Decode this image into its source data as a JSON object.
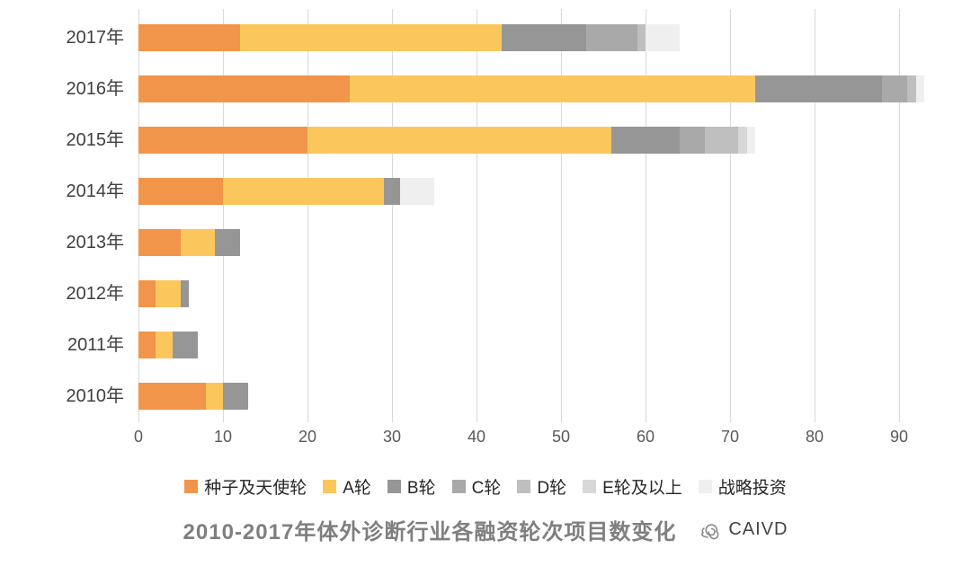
{
  "title": "2010-2017年体外诊断行业各融资轮次项目数变化",
  "logo_text": "CAIVD",
  "chart_data": {
    "type": "bar",
    "variant": "horizontal-stacked",
    "categories": [
      "2017年",
      "2016年",
      "2015年",
      "2014年",
      "2013年",
      "2012年",
      "2011年",
      "2010年"
    ],
    "series": [
      {
        "name": "种子及天使轮",
        "color": "#f0954a",
        "values": [
          12,
          25,
          20,
          10,
          5,
          2,
          2,
          8
        ]
      },
      {
        "name": "A轮",
        "color": "#fbc75c",
        "values": [
          31,
          48,
          36,
          19,
          4,
          3,
          2,
          2
        ]
      },
      {
        "name": "B轮",
        "color": "#969696",
        "values": [
          10,
          15,
          8,
          2,
          3,
          1,
          3,
          3
        ]
      },
      {
        "name": "C轮",
        "color": "#a9a9a9",
        "values": [
          6,
          3,
          3,
          0,
          0,
          0,
          0,
          0
        ]
      },
      {
        "name": "D轮",
        "color": "#bfbfbf",
        "values": [
          1,
          1,
          4,
          0,
          0,
          0,
          0,
          0
        ]
      },
      {
        "name": "E轮及以上",
        "color": "#d8d8d8",
        "values": [
          0,
          0,
          1,
          0,
          0,
          0,
          0,
          0
        ]
      },
      {
        "name": "战略投资",
        "color": "#efefef",
        "values": [
          4,
          1,
          1,
          4,
          0,
          0,
          0,
          0
        ]
      }
    ],
    "totals": [
      64,
      93,
      73,
      35,
      12,
      6,
      7,
      13
    ],
    "x_ticks": [
      0,
      10,
      20,
      30,
      40,
      50,
      60,
      70,
      80,
      90
    ],
    "xlim": [
      0,
      98
    ],
    "grid": "vertical",
    "legend_position": "bottom",
    "gridline_color": "#d9d9d9"
  }
}
